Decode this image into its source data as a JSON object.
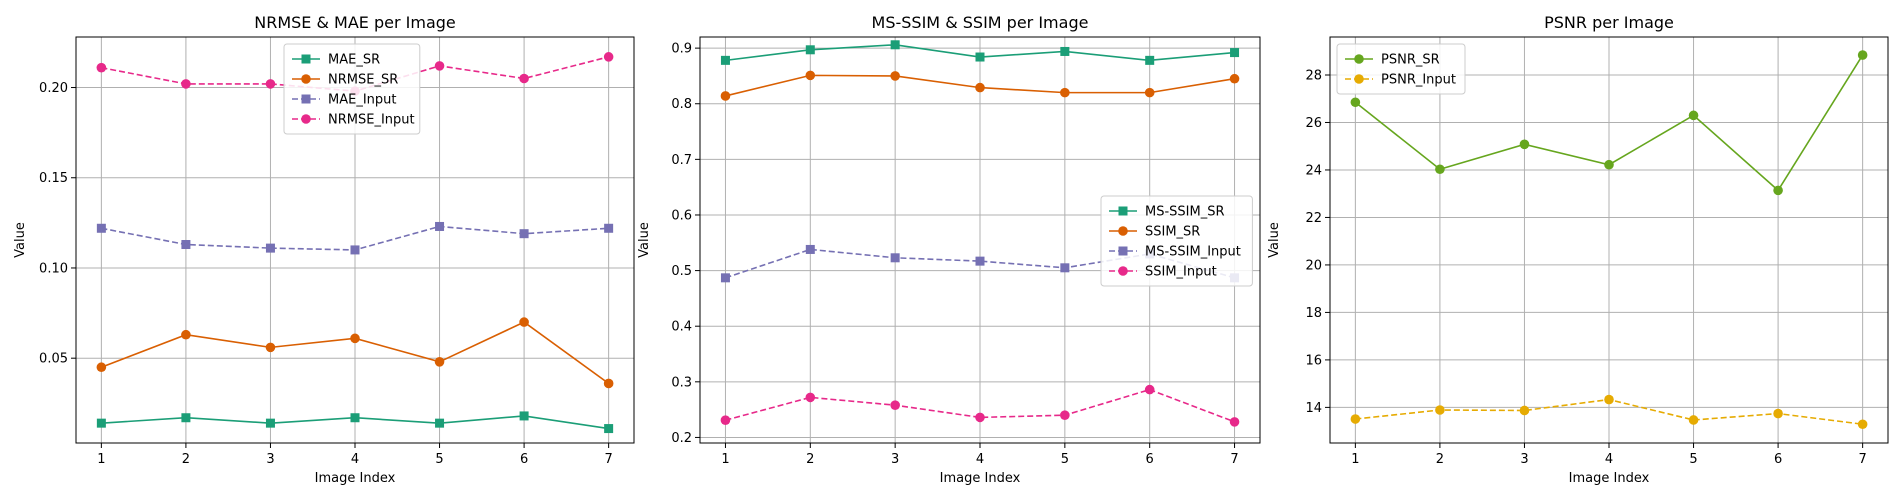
{
  "chart_data": [
    {
      "type": "line",
      "title": "NRMSE & MAE per Image",
      "xlabel": "Image Index",
      "ylabel": "Value",
      "x": [
        1,
        2,
        3,
        4,
        5,
        6,
        7
      ],
      "xlim": [
        0.7,
        7.3
      ],
      "ylim": [
        0.003,
        0.228
      ],
      "yticks": [
        0.05,
        0.1,
        0.15,
        0.2
      ],
      "ytick_labels": [
        "0.05",
        "0.10",
        "0.15",
        "0.20"
      ],
      "grid": true,
      "legend_placement": "top-center",
      "series": [
        {
          "name": "MAE_SR",
          "values": [
            0.014,
            0.017,
            0.014,
            0.017,
            0.014,
            0.018,
            0.011
          ],
          "color": "#1b9e77",
          "marker": "square",
          "dashed": false
        },
        {
          "name": "NRMSE_SR",
          "values": [
            0.045,
            0.063,
            0.056,
            0.061,
            0.048,
            0.07,
            0.036
          ],
          "color": "#d95f02",
          "marker": "circle",
          "dashed": false
        },
        {
          "name": "MAE_Input",
          "values": [
            0.122,
            0.113,
            0.111,
            0.11,
            0.123,
            0.119,
            0.122
          ],
          "color": "#7570b3",
          "marker": "square",
          "dashed": true
        },
        {
          "name": "NRMSE_Input",
          "values": [
            0.211,
            0.202,
            0.202,
            0.198,
            0.212,
            0.205,
            0.217
          ],
          "color": "#e7298a",
          "marker": "circle",
          "dashed": true
        }
      ]
    },
    {
      "type": "line",
      "title": "MS-SSIM & SSIM per Image",
      "xlabel": "Image Index",
      "ylabel": "Value",
      "x": [
        1,
        2,
        3,
        4,
        5,
        6,
        7
      ],
      "xlim": [
        0.7,
        7.3
      ],
      "ylim": [
        0.19,
        0.92
      ],
      "yticks": [
        0.2,
        0.3,
        0.4,
        0.5,
        0.6,
        0.7,
        0.8,
        0.9
      ],
      "ytick_labels": [
        "0.2",
        "0.3",
        "0.4",
        "0.5",
        "0.6",
        "0.7",
        "0.8",
        "0.9"
      ],
      "grid": true,
      "legend_placement": "center-right",
      "series": [
        {
          "name": "MS-SSIM_SR",
          "values": [
            0.878,
            0.897,
            0.906,
            0.884,
            0.894,
            0.878,
            0.892
          ],
          "color": "#1b9e77",
          "marker": "square",
          "dashed": false
        },
        {
          "name": "SSIM_SR",
          "values": [
            0.814,
            0.851,
            0.85,
            0.829,
            0.82,
            0.82,
            0.845
          ],
          "color": "#d95f02",
          "marker": "circle",
          "dashed": false
        },
        {
          "name": "MS-SSIM_Input",
          "values": [
            0.487,
            0.538,
            0.523,
            0.517,
            0.505,
            0.53,
            0.487
          ],
          "color": "#7570b3",
          "marker": "square",
          "dashed": true
        },
        {
          "name": "SSIM_Input",
          "values": [
            0.231,
            0.272,
            0.258,
            0.236,
            0.24,
            0.286,
            0.228
          ],
          "color": "#e7298a",
          "marker": "circle",
          "dashed": true
        }
      ]
    },
    {
      "type": "line",
      "title": "PSNR per Image",
      "xlabel": "Image Index",
      "ylabel": "Value",
      "x": [
        1,
        2,
        3,
        4,
        5,
        6,
        7
      ],
      "xlim": [
        0.7,
        7.3
      ],
      "ylim": [
        12.5,
        29.6
      ],
      "yticks": [
        14,
        16,
        18,
        20,
        22,
        24,
        26,
        28
      ],
      "ytick_labels": [
        "14",
        "16",
        "18",
        "20",
        "22",
        "24",
        "26",
        "28"
      ],
      "grid": true,
      "legend_placement": "top-left",
      "series": [
        {
          "name": "PSNR_SR",
          "values": [
            26.85,
            24.03,
            25.08,
            24.22,
            26.3,
            23.14,
            28.84
          ],
          "color": "#66a61e",
          "marker": "circle",
          "dashed": false
        },
        {
          "name": "PSNR_Input",
          "values": [
            13.51,
            13.89,
            13.87,
            14.33,
            13.47,
            13.74,
            13.29
          ],
          "color": "#e6ab02",
          "marker": "circle",
          "dashed": true
        }
      ]
    }
  ]
}
